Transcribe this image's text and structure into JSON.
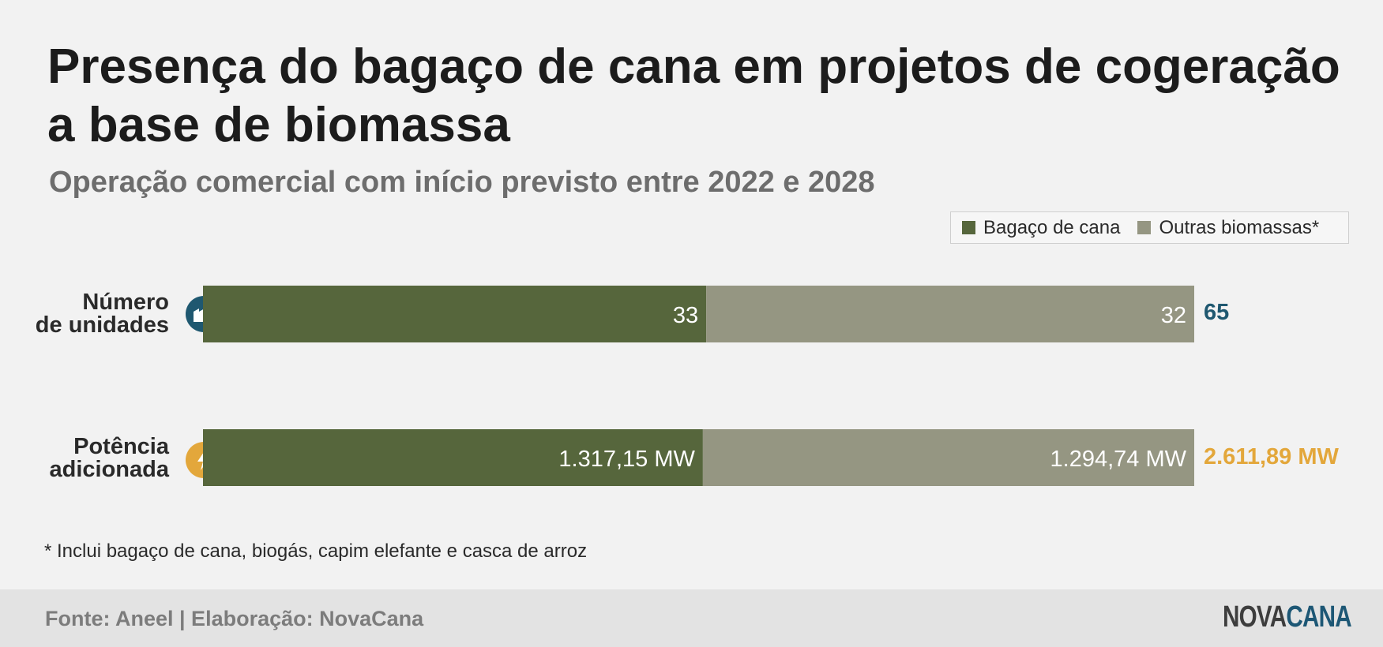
{
  "title": "Presença do bagaço de cana em projetos de cogeração a base de biomassa",
  "subtitle": "Operação comercial com início previsto entre 2022 e 2028",
  "legend": {
    "items": [
      {
        "label": "Bagaço de cana",
        "color": "#56663c"
      },
      {
        "label": "Outras biomassas*",
        "color": "#959682"
      }
    ]
  },
  "rows": [
    {
      "label_line1": "Número",
      "label_line2": "de unidades",
      "icon": "factory-icon",
      "icon_color": "#1f5870",
      "total": "65",
      "total_color": "#1f5870"
    },
    {
      "label_line1": "Potência",
      "label_line2": "adicionada",
      "icon": "lightning-bolt-icon",
      "icon_color": "#e3a73b",
      "total": "2.611,89 MW",
      "total_color": "#e3a73b"
    }
  ],
  "chart_data": {
    "type": "bar",
    "orientation": "horizontal",
    "stacked": true,
    "normalized": true,
    "categories": [
      "Número de unidades",
      "Potência adicionada"
    ],
    "series": [
      {
        "name": "Bagaço de cana",
        "values": [
          33,
          1317.15
        ],
        "labels": [
          "33",
          "1.317,15 MW"
        ],
        "color": "#56663c"
      },
      {
        "name": "Outras biomassas*",
        "values": [
          32,
          1294.74
        ],
        "labels": [
          "32",
          "1.294,74 MW"
        ],
        "color": "#959682"
      }
    ],
    "totals": [
      "65",
      "2.611,89 MW"
    ],
    "legend_position": "top-right",
    "grid": false
  },
  "footnote": "* Inclui bagaço de cana, biogás, capim elefante e casca de arroz",
  "footer": {
    "source": "Fonte: Aneel | Elaboração: NovaCana",
    "logo_part1": "NOVA",
    "logo_part2": "CANA"
  }
}
